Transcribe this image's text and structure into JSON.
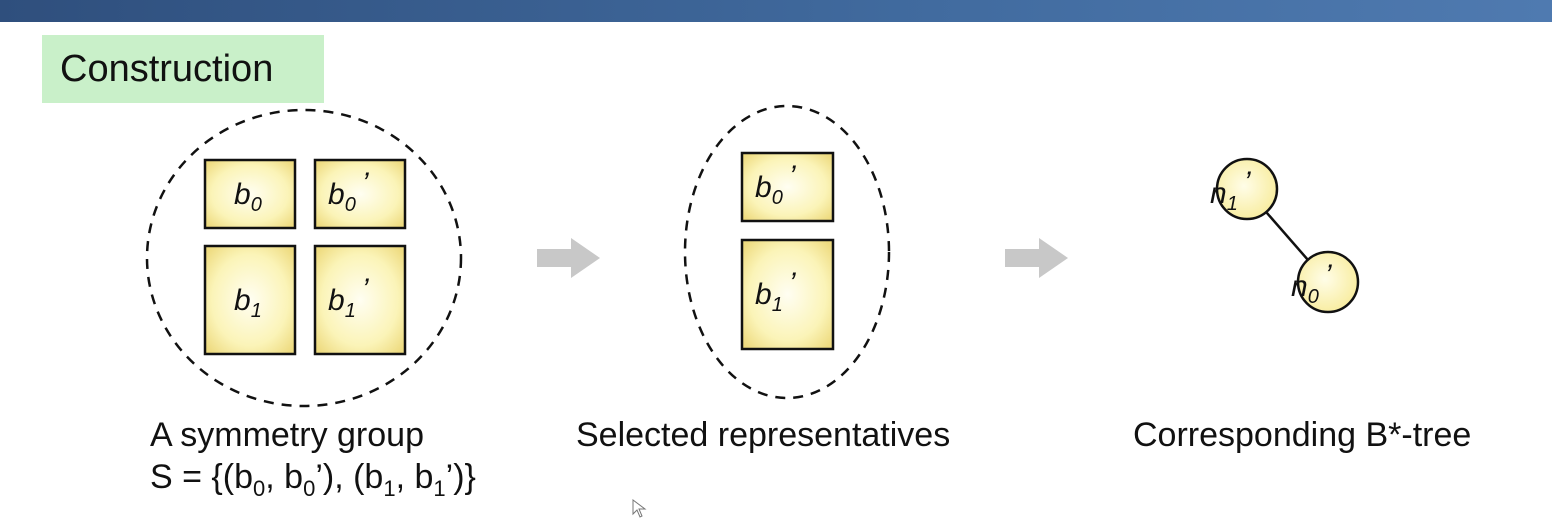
{
  "section_title": "Construction",
  "blocks": {
    "b0": {
      "base": "b",
      "sub": "0",
      "prime": ""
    },
    "b0p": {
      "base": "b",
      "sub": "0",
      "prime": "’"
    },
    "b1": {
      "base": "b",
      "sub": "1",
      "prime": ""
    },
    "b1p": {
      "base": "b",
      "sub": "1",
      "prime": "’"
    }
  },
  "tree_nodes": {
    "n1": {
      "base": "n",
      "sub": "1",
      "prime": "’"
    },
    "n0": {
      "base": "n",
      "sub": "0",
      "prime": "’"
    }
  },
  "captions": {
    "group_line1": "A symmetry group",
    "group_line2": {
      "t1": "S = {(b",
      "s1": "0",
      "t2": ", b",
      "s2": "0",
      "t3": "’), (b",
      "s3": "1",
      "t4": ", b",
      "s4": "1",
      "t5": "’)}"
    },
    "representatives": "Selected representatives",
    "tree": "Corresponding B*-tree"
  },
  "colors": {
    "topbar": "#416b9f",
    "title_bg": "#c9f0c9",
    "block_fill_center": "#fffce0",
    "block_fill_edge": "#f0e08a",
    "arrow": "#c8c8c8",
    "node_fill": "#fff6b0"
  }
}
